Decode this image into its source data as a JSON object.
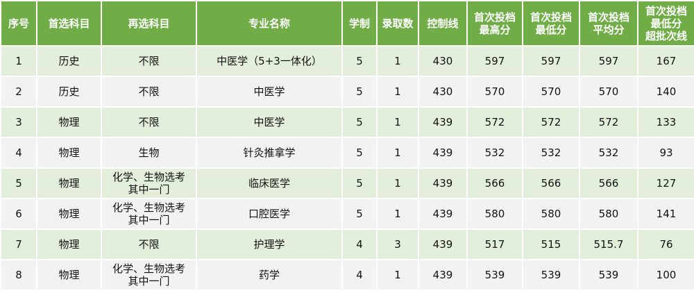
{
  "colors": {
    "header": "#70AD47",
    "row_odd": "#E3EFDA",
    "row_even": "#F2F2F2"
  },
  "headers": [
    "序号",
    "首选科目",
    "再选科目",
    "专业名称",
    "学制",
    "录取数",
    "控制线",
    "首次投档\n最高分",
    "首次投档\n最低分",
    "首次投档\n平均分",
    "首次投档\n最低分\n超批次线"
  ],
  "rows": [
    [
      "1",
      "历史",
      "不限",
      "中医学（5+3一体化）",
      "5",
      "1",
      "430",
      "597",
      "597",
      "597",
      "167"
    ],
    [
      "2",
      "历史",
      "不限",
      "中医学",
      "5",
      "1",
      "430",
      "570",
      "570",
      "570",
      "140"
    ],
    [
      "3",
      "物理",
      "不限",
      "中医学",
      "5",
      "1",
      "439",
      "572",
      "572",
      "572",
      "133"
    ],
    [
      "4",
      "物理",
      "生物",
      "针灸推拿学",
      "5",
      "1",
      "439",
      "532",
      "532",
      "532",
      "93"
    ],
    [
      "5",
      "物理",
      "化学、生物选考\n其中一门",
      "临床医学",
      "5",
      "1",
      "439",
      "566",
      "566",
      "566",
      "127"
    ],
    [
      "6",
      "物理",
      "化学、生物选考\n其中一门",
      "口腔医学",
      "5",
      "1",
      "439",
      "580",
      "580",
      "580",
      "141"
    ],
    [
      "7",
      "物理",
      "不限",
      "护理学",
      "4",
      "3",
      "439",
      "517",
      "515",
      "515.7",
      "76"
    ],
    [
      "8",
      "物理",
      "化学、生物选考\n其中一门",
      "药学",
      "4",
      "1",
      "439",
      "539",
      "539",
      "539",
      "100"
    ]
  ]
}
